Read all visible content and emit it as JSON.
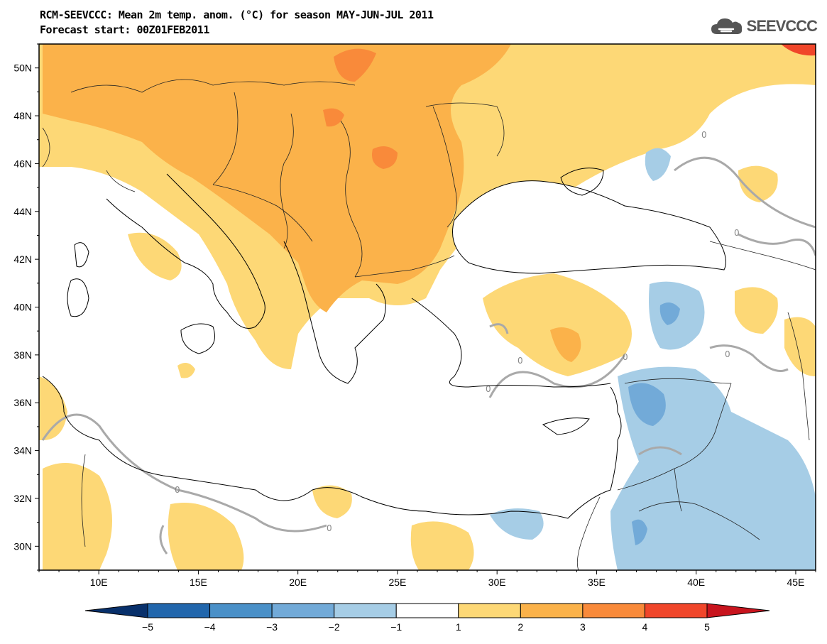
{
  "title": {
    "line1": "RCM-SEEVCCC: Mean 2m temp. anom. (°C) for season MAY-JUN-JUL 2011",
    "line2": "Forecast start: 00Z01FEB2011"
  },
  "logo": {
    "text": "SEEVCCC",
    "icon": "cloud-icon"
  },
  "chart_data": {
    "type": "heatmap",
    "title": "RCM-SEEVCCC: Mean 2m temp. anom. (°C) for season MAY-JUN-JUL 2011",
    "subtitle": "Forecast start: 00Z01FEB2011",
    "xlim": [
      7,
      46
    ],
    "ylim": [
      29,
      51
    ],
    "x_ticks": [
      10,
      15,
      20,
      25,
      30,
      35,
      40,
      45
    ],
    "x_tick_labels": [
      "10E",
      "15E",
      "20E",
      "25E",
      "30E",
      "35E",
      "40E",
      "45E"
    ],
    "y_ticks": [
      30,
      32,
      34,
      36,
      38,
      40,
      42,
      44,
      46,
      48,
      50
    ],
    "y_tick_labels": [
      "30N",
      "32N",
      "34N",
      "36N",
      "38N",
      "40N",
      "42N",
      "44N",
      "46N",
      "48N",
      "50N"
    ],
    "contour_label": "0",
    "colorbar": {
      "boundaries": [
        -5,
        -4,
        -3,
        -2,
        -1,
        1,
        2,
        3,
        4,
        5
      ],
      "labels": [
        "−5",
        "−4",
        "−3",
        "−2",
        "−1",
        "1",
        "2",
        "3",
        "4",
        "5"
      ],
      "colors": [
        "#08306b",
        "#2166ac",
        "#4a90c8",
        "#72aad8",
        "#a6cde6",
        "#ffffff",
        "#fdd876",
        "#fbb24a",
        "#f98a3a",
        "#f0462a",
        "#c8141e"
      ]
    }
  }
}
